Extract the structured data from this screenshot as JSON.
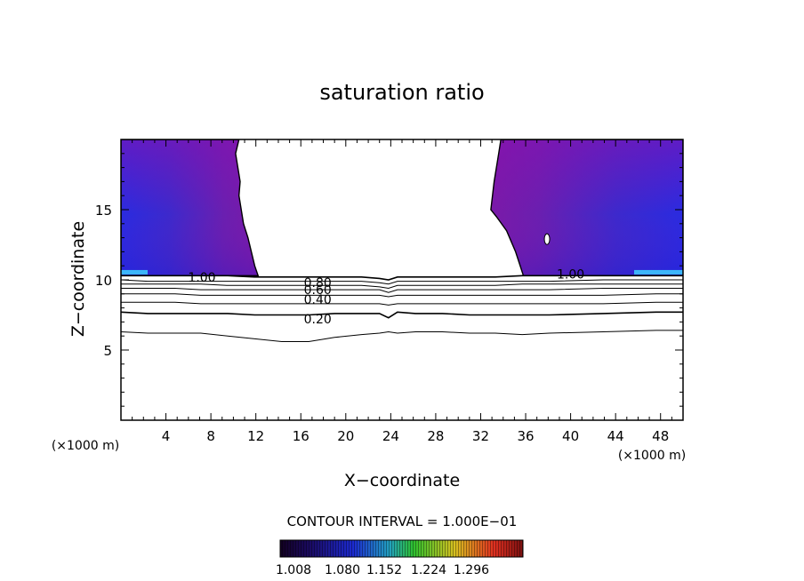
{
  "chart_data": {
    "type": "contour",
    "title": "saturation ratio",
    "xlabel": "X−coordinate",
    "ylabel": "Z−coordinate",
    "x_unit": "(×1000 m)",
    "y_unit": "(×1000 m)",
    "xlim": [
      0,
      50
    ],
    "ylim": [
      0,
      20
    ],
    "x_ticks": [
      4,
      8,
      12,
      16,
      20,
      24,
      28,
      32,
      36,
      40,
      44,
      48
    ],
    "y_ticks": [
      5,
      10,
      15
    ],
    "contour_interval_text": "CONTOUR INTERVAL = 1.000E−01",
    "colorbar_labels": [
      "1.008",
      "1.080",
      "1.152",
      "1.224",
      "1.296"
    ],
    "contour_lines": [
      {
        "level": "0.10",
        "z": [
          6.3,
          6.2,
          6.2,
          6.2,
          6.0,
          5.8,
          5.6,
          5.6,
          5.9,
          6.1,
          6.2,
          6.3,
          6.2,
          6.3,
          6.3,
          6.2,
          6.2,
          6.1,
          6.2,
          6.3,
          6.4,
          6.4
        ]
      },
      {
        "level": "0.20",
        "z": [
          7.7,
          7.6,
          7.6,
          7.6,
          7.6,
          7.5,
          7.5,
          7.5,
          7.6,
          7.6,
          7.6,
          7.3,
          7.7,
          7.6,
          7.6,
          7.5,
          7.5,
          7.5,
          7.5,
          7.6,
          7.7,
          7.7
        ],
        "label": "0.20",
        "label_x": 17.5,
        "label_z": 7.2
      },
      {
        "level": "0.30",
        "z": [
          8.4,
          8.4,
          8.4,
          8.3,
          8.3,
          8.3,
          8.3,
          8.3,
          8.3,
          8.3,
          8.3,
          8.2,
          8.3,
          8.3,
          8.3,
          8.3,
          8.3,
          8.3,
          8.3,
          8.3,
          8.4,
          8.4
        ]
      },
      {
        "level": "0.40",
        "z": [
          9.0,
          9.0,
          9.0,
          8.9,
          8.9,
          8.9,
          8.9,
          8.9,
          8.9,
          8.9,
          8.9,
          8.8,
          8.9,
          8.9,
          8.9,
          8.9,
          8.9,
          8.9,
          8.9,
          8.9,
          9.0,
          9.0
        ],
        "label": "0.40",
        "label_x": 17.5,
        "label_z": 8.6
      },
      {
        "level": "0.50",
        "z": [
          9.4,
          9.4,
          9.4,
          9.3,
          9.3,
          9.3,
          9.3,
          9.3,
          9.3,
          9.3,
          9.3,
          9.1,
          9.3,
          9.3,
          9.3,
          9.3,
          9.3,
          9.3,
          9.3,
          9.4,
          9.4,
          9.4
        ]
      },
      {
        "level": "0.60",
        "z": [
          9.7,
          9.7,
          9.7,
          9.7,
          9.6,
          9.6,
          9.6,
          9.6,
          9.6,
          9.6,
          9.5,
          9.4,
          9.6,
          9.6,
          9.6,
          9.6,
          9.6,
          9.7,
          9.7,
          9.7,
          9.7,
          9.7
        ],
        "label": "0.60",
        "label_x": 17.5,
        "label_z": 9.3
      },
      {
        "level": "0.80",
        "z": [
          10.0,
          9.9,
          9.9,
          9.9,
          9.9,
          9.9,
          9.9,
          9.9,
          9.9,
          9.9,
          9.8,
          9.7,
          9.9,
          9.9,
          9.9,
          9.9,
          9.9,
          9.9,
          9.9,
          10.0,
          10.0,
          10.0
        ],
        "label": "0.80",
        "label_x": 17.5,
        "label_z": 9.8
      },
      {
        "level": "1.00",
        "z": [
          10.3,
          10.3,
          10.3,
          10.3,
          10.3,
          10.2,
          10.2,
          10.2,
          10.2,
          10.2,
          10.1,
          10.0,
          10.2,
          10.2,
          10.2,
          10.2,
          10.2,
          10.3,
          10.3,
          10.3,
          10.3,
          10.3
        ],
        "label": "1.00",
        "label_x": 7.2,
        "label_z": 10.2
      },
      {
        "level": "1.00",
        "label": "1.00",
        "label_x": 40.0,
        "label_z": 10.4
      }
    ],
    "contour_line_x": [
      0,
      2.4,
      4.8,
      7.1,
      9.5,
      11.9,
      14.3,
      16.7,
      19.0,
      21.4,
      23.0,
      23.8,
      24.6,
      26.2,
      28.6,
      31.0,
      33.3,
      35.7,
      38.1,
      42.9,
      47.6,
      50
    ],
    "supersaturated_regions": [
      {
        "side": "left",
        "x_left": 0,
        "boundary_x": [
          10.5,
          10.2,
          10.6,
          10.5,
          10.9,
          11.3,
          11.9,
          12.2
        ],
        "boundary_z": [
          20,
          19.0,
          17.0,
          16.0,
          14.0,
          13.0,
          11.0,
          10.3
        ]
      },
      {
        "side": "right",
        "x_right": 50,
        "boundary_x": [
          33.8,
          33.6,
          33.2,
          32.9,
          33.4,
          34.3,
          35.1,
          35.8
        ],
        "boundary_z": [
          20,
          19.0,
          17.0,
          15.0,
          14.5,
          13.5,
          12.0,
          10.3
        ]
      }
    ],
    "grid": false,
    "legend": "colorbar bottom"
  }
}
